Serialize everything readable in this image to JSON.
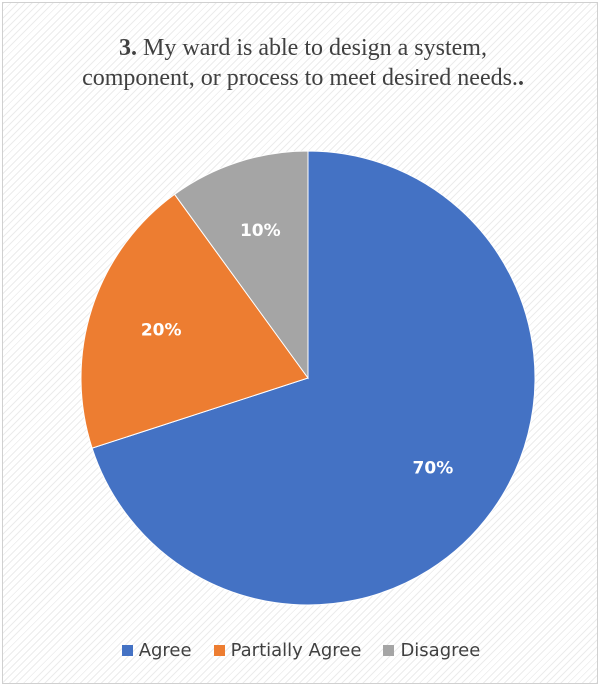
{
  "chart_data": {
    "type": "pie",
    "title": {
      "number": "3.",
      "text": "My ward is able to design a system, component, or process to meet desired needs.",
      "suffix": "."
    },
    "categories": [
      "Agree",
      "Partially Agree",
      "Disagree"
    ],
    "values": [
      70,
      20,
      10
    ],
    "data_labels": [
      "70%",
      "20%",
      "10%"
    ],
    "colors": [
      "#4472c4",
      "#ed7d31",
      "#a5a5a5"
    ],
    "legend_position": "bottom"
  }
}
